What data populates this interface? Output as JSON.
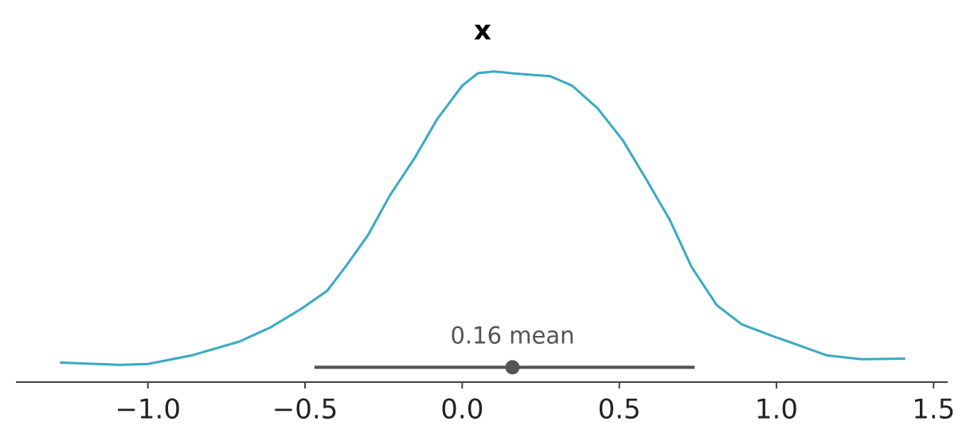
{
  "chart_data": {
    "type": "line",
    "title": "x",
    "series": [
      {
        "color": "#3aaac3",
        "x": [
          -1.28,
          -1.09,
          -1.0,
          -0.86,
          -0.71,
          -0.61,
          -0.51,
          -0.43,
          -0.37,
          -0.3,
          -0.23,
          -0.15,
          -0.08,
          0.0,
          0.05,
          0.1,
          0.18,
          0.28,
          0.35,
          0.43,
          0.51,
          0.58,
          0.66,
          0.73,
          0.81,
          0.89,
          0.99,
          1.06,
          1.16,
          1.27,
          1.41
        ],
        "values": [
          0.016,
          0.008,
          0.011,
          0.04,
          0.086,
          0.134,
          0.198,
          0.257,
          0.34,
          0.444,
          0.578,
          0.706,
          0.834,
          0.947,
          0.989,
          0.995,
          0.987,
          0.979,
          0.947,
          0.872,
          0.765,
          0.642,
          0.497,
          0.337,
          0.209,
          0.144,
          0.104,
          0.078,
          0.04,
          0.027,
          0.029
        ]
      }
    ],
    "hdi": {
      "x": [
        -0.47,
        0.74
      ],
      "values": [
        0,
        0
      ],
      "color": "#555555"
    },
    "point_estimate": {
      "x": [
        0.16
      ],
      "values": [
        0
      ],
      "value_labels": [
        "0.16 mean"
      ],
      "color": "#555555"
    },
    "xlim": [
      -1.42,
      1.545
    ],
    "ylim": [
      -0.05,
      1.23
    ],
    "xticks": [
      {
        "value": -1,
        "label": "−1.0"
      },
      {
        "value": -0.5,
        "label": "−0.5"
      },
      {
        "value": 0,
        "label": "0.0"
      },
      {
        "value": 0.5,
        "label": "0.5"
      },
      {
        "value": 1,
        "label": "1.0"
      },
      {
        "value": 1.5,
        "label": "1.5"
      }
    ],
    "grid": false
  }
}
